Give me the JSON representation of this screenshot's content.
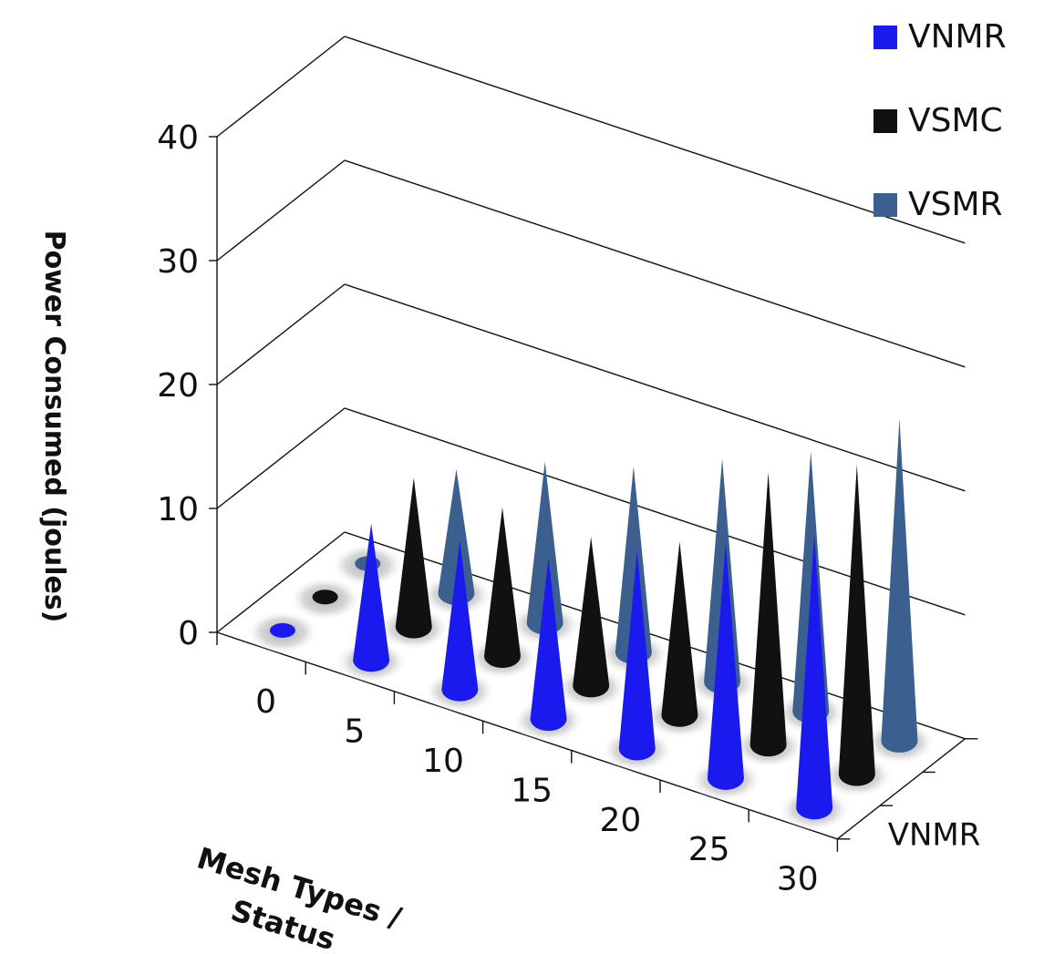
{
  "chart_data": {
    "type": "3d-cone",
    "title": "",
    "xlabel_line1": "Mesh Types /",
    "xlabel_line2": "Status",
    "ylabel": "Power Consumed (joules)",
    "ylim": [
      0,
      40
    ],
    "yticks": [
      "0",
      "10",
      "20",
      "30",
      "40"
    ],
    "categories": [
      "0",
      "5",
      "10",
      "15",
      "20",
      "25",
      "30"
    ],
    "depth_labels_visible": [
      "VNMR"
    ],
    "legend_position": "top-right",
    "grid": true,
    "series": [
      {
        "name": "VNMR",
        "color": "#1a1aee",
        "values": [
          0,
          11,
          12,
          13,
          16,
          19,
          22
        ]
      },
      {
        "name": "VSMC",
        "color": "#111111",
        "values": [
          0,
          12,
          12,
          12,
          14,
          22,
          25
        ]
      },
      {
        "name": "VSMR",
        "color": "#3b5f8e",
        "values": [
          0,
          10,
          13,
          15,
          18,
          21,
          26
        ]
      }
    ]
  }
}
